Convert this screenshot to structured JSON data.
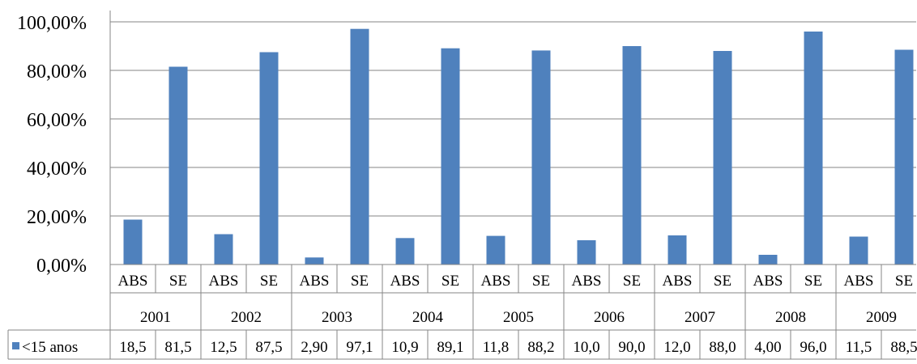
{
  "chart_data": {
    "type": "bar",
    "title": "",
    "xlabel": "",
    "ylabel": "",
    "ylim": [
      0,
      100
    ],
    "y_ticks": [
      "0,00%",
      "20,00%",
      "40,00%",
      "60,00%",
      "80,00%",
      "100,00%"
    ],
    "y_tick_values": [
      0,
      20,
      40,
      60,
      80,
      100
    ],
    "grid": true,
    "years": [
      "2001",
      "2002",
      "2003",
      "2004",
      "2005",
      "2006",
      "2007",
      "2008",
      "2009"
    ],
    "categories": [
      "ABS",
      "SE",
      "ABS",
      "SE",
      "ABS",
      "SE",
      "ABS",
      "SE",
      "ABS",
      "SE",
      "ABS",
      "SE",
      "ABS",
      "SE",
      "ABS",
      "SE",
      "ABS",
      "SE"
    ],
    "series": [
      {
        "name": "<15 anos",
        "color": "#4F81BD",
        "values": [
          18.5,
          81.5,
          12.5,
          87.5,
          2.9,
          97.1,
          10.9,
          89.1,
          11.8,
          88.2,
          10.0,
          90.0,
          12.0,
          88.0,
          4.0,
          96.0,
          11.5,
          88.5
        ],
        "table_labels": [
          "18,5",
          "81,5",
          "12,5",
          "87,5",
          "2,90",
          "97,1",
          "10,9",
          "89,1",
          "11,8",
          "88,2",
          "10,0",
          "90,0",
          "12,0",
          "88,0",
          "4,00",
          "96,0",
          "11,5",
          "88,5"
        ]
      }
    ],
    "data_table": true
  }
}
